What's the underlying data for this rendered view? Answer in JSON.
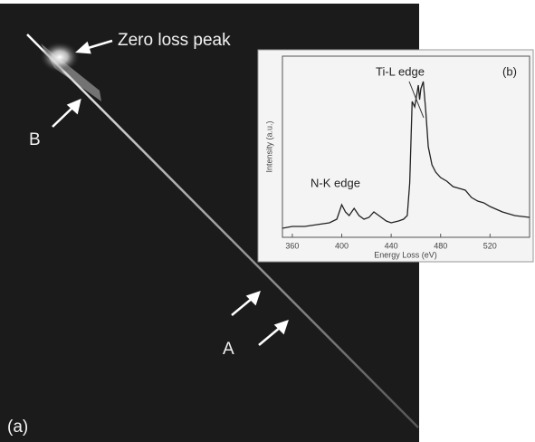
{
  "panel_a": {
    "zero_loss_label": "Zero loss peak",
    "b_label": "B",
    "a_label": "A",
    "panel_label": "(a)"
  },
  "chart_data": {
    "type": "line",
    "panel_label": "(b)",
    "annotations": [
      "Ti-L edge",
      "N-K edge"
    ],
    "x_label": "Energy Loss (eV)",
    "y_label": "Intensity (a.u.)",
    "x": [
      352,
      360,
      370,
      380,
      390,
      396,
      400,
      403,
      406,
      410,
      414,
      418,
      422,
      426,
      430,
      436,
      440,
      446,
      450,
      453,
      455,
      457,
      459,
      461,
      462,
      463,
      464,
      466,
      468,
      470,
      473,
      476,
      480,
      485,
      490,
      495,
      500,
      505,
      510,
      515,
      520,
      530,
      540,
      552
    ],
    "values": [
      5,
      6,
      6,
      7,
      8,
      10,
      18,
      14,
      12,
      16,
      12,
      10,
      11,
      14,
      12,
      9,
      8,
      9,
      10,
      12,
      30,
      75,
      72,
      80,
      84,
      76,
      82,
      86,
      70,
      50,
      40,
      36,
      33,
      31,
      28,
      27,
      26,
      22,
      20,
      19,
      17,
      14,
      12,
      11
    ],
    "color": "#222222",
    "xlim": [
      352,
      552
    ],
    "ylim": [
      0,
      100
    ],
    "xticks": [
      360,
      400,
      440,
      480,
      520
    ]
  }
}
